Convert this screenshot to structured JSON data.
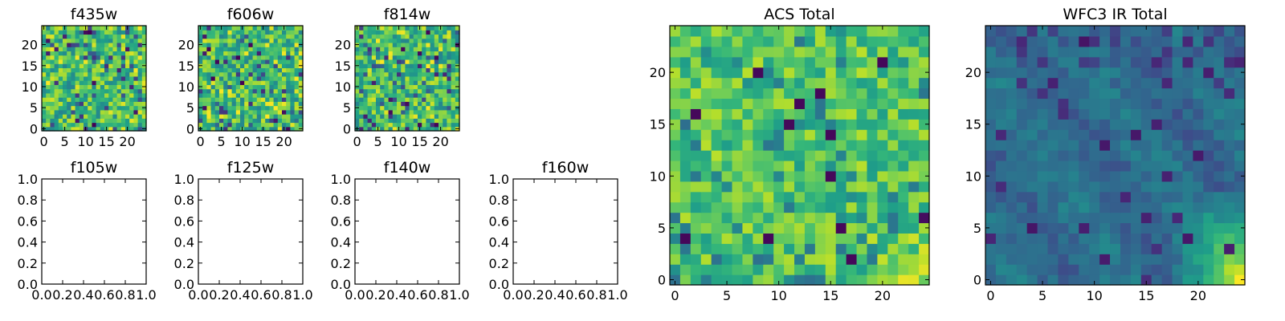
{
  "chart_data": [
    {
      "type": "heatmap",
      "title": "f435w",
      "colormap": "viridis",
      "xlim": [
        0,
        25
      ],
      "ylim": [
        0,
        25
      ],
      "xticks": [
        0,
        5,
        10,
        15,
        20
      ],
      "yticks": [
        0,
        5,
        10,
        15,
        20
      ],
      "grid": false,
      "legend": "none",
      "seed": 11,
      "fine": true,
      "gradient": 0,
      "rows": 25,
      "cols": 25
    },
    {
      "type": "heatmap",
      "title": "f606w",
      "colormap": "viridis",
      "xlim": [
        0,
        25
      ],
      "ylim": [
        0,
        25
      ],
      "xticks": [
        0,
        5,
        10,
        15,
        20
      ],
      "yticks": [
        0,
        5,
        10,
        15,
        20
      ],
      "grid": false,
      "legend": "none",
      "seed": 23,
      "fine": true,
      "gradient": 0.3,
      "rows": 25,
      "cols": 25
    },
    {
      "type": "heatmap",
      "title": "f814w",
      "colormap": "viridis",
      "xlim": [
        0,
        25
      ],
      "ylim": [
        0,
        25
      ],
      "xticks": [
        0,
        5,
        10,
        15,
        20
      ],
      "yticks": [
        0,
        5,
        10,
        15,
        20
      ],
      "grid": false,
      "legend": "none",
      "seed": 37,
      "fine": true,
      "gradient": 0.5,
      "rows": 25,
      "cols": 25
    },
    {
      "type": "empty",
      "title": "f105w",
      "xlim": [
        0,
        1
      ],
      "ylim": [
        0,
        1
      ],
      "xticks": [
        "0.0",
        "0.2",
        "0.4",
        "0.6",
        "0.8",
        "1.0"
      ],
      "yticks": [
        "0.0",
        "0.2",
        "0.4",
        "0.6",
        "0.8",
        "1.0"
      ]
    },
    {
      "type": "empty",
      "title": "f125w",
      "xlim": [
        0,
        1
      ],
      "ylim": [
        0,
        1
      ],
      "xticks": [
        "0.0",
        "0.2",
        "0.4",
        "0.6",
        "0.8",
        "1.0"
      ],
      "yticks": [
        "0.0",
        "0.2",
        "0.4",
        "0.6",
        "0.8",
        "1.0"
      ]
    },
    {
      "type": "empty",
      "title": "f140w",
      "xlim": [
        0,
        1
      ],
      "ylim": [
        0,
        1
      ],
      "xticks": [
        "0.0",
        "0.2",
        "0.4",
        "0.6",
        "0.8",
        "1.0"
      ],
      "yticks": [
        "0.0",
        "0.2",
        "0.4",
        "0.6",
        "0.8",
        "1.0"
      ]
    },
    {
      "type": "empty",
      "title": "f160w",
      "xlim": [
        0,
        1
      ],
      "ylim": [
        0,
        1
      ],
      "xticks": [
        "0.0",
        "0.2",
        "0.4",
        "0.6",
        "0.8",
        "1.0"
      ],
      "yticks": [
        "0.0",
        "0.2",
        "0.4",
        "0.6",
        "0.8",
        "1.0"
      ]
    },
    {
      "type": "heatmap",
      "title": "ACS Total",
      "colormap": "viridis",
      "xlim": [
        0,
        25
      ],
      "ylim": [
        0,
        25
      ],
      "xticks": [
        0,
        5,
        10,
        15,
        20
      ],
      "yticks": [
        0,
        5,
        10,
        15,
        20
      ],
      "grid": false,
      "legend": "none",
      "seed": 53,
      "fine": false,
      "gradient": 0.4,
      "rows": 25,
      "cols": 25
    },
    {
      "type": "heatmap",
      "title": "WFC3 IR Total",
      "colormap": "viridis",
      "xlim": [
        0,
        25
      ],
      "ylim": [
        0,
        25
      ],
      "xticks": [
        0,
        5,
        10,
        15,
        20
      ],
      "yticks": [
        0,
        5,
        10,
        15,
        20
      ],
      "grid": false,
      "legend": "none",
      "seed": 71,
      "fine": false,
      "gradient": 1,
      "ir": true,
      "rows": 25,
      "cols": 25
    }
  ]
}
